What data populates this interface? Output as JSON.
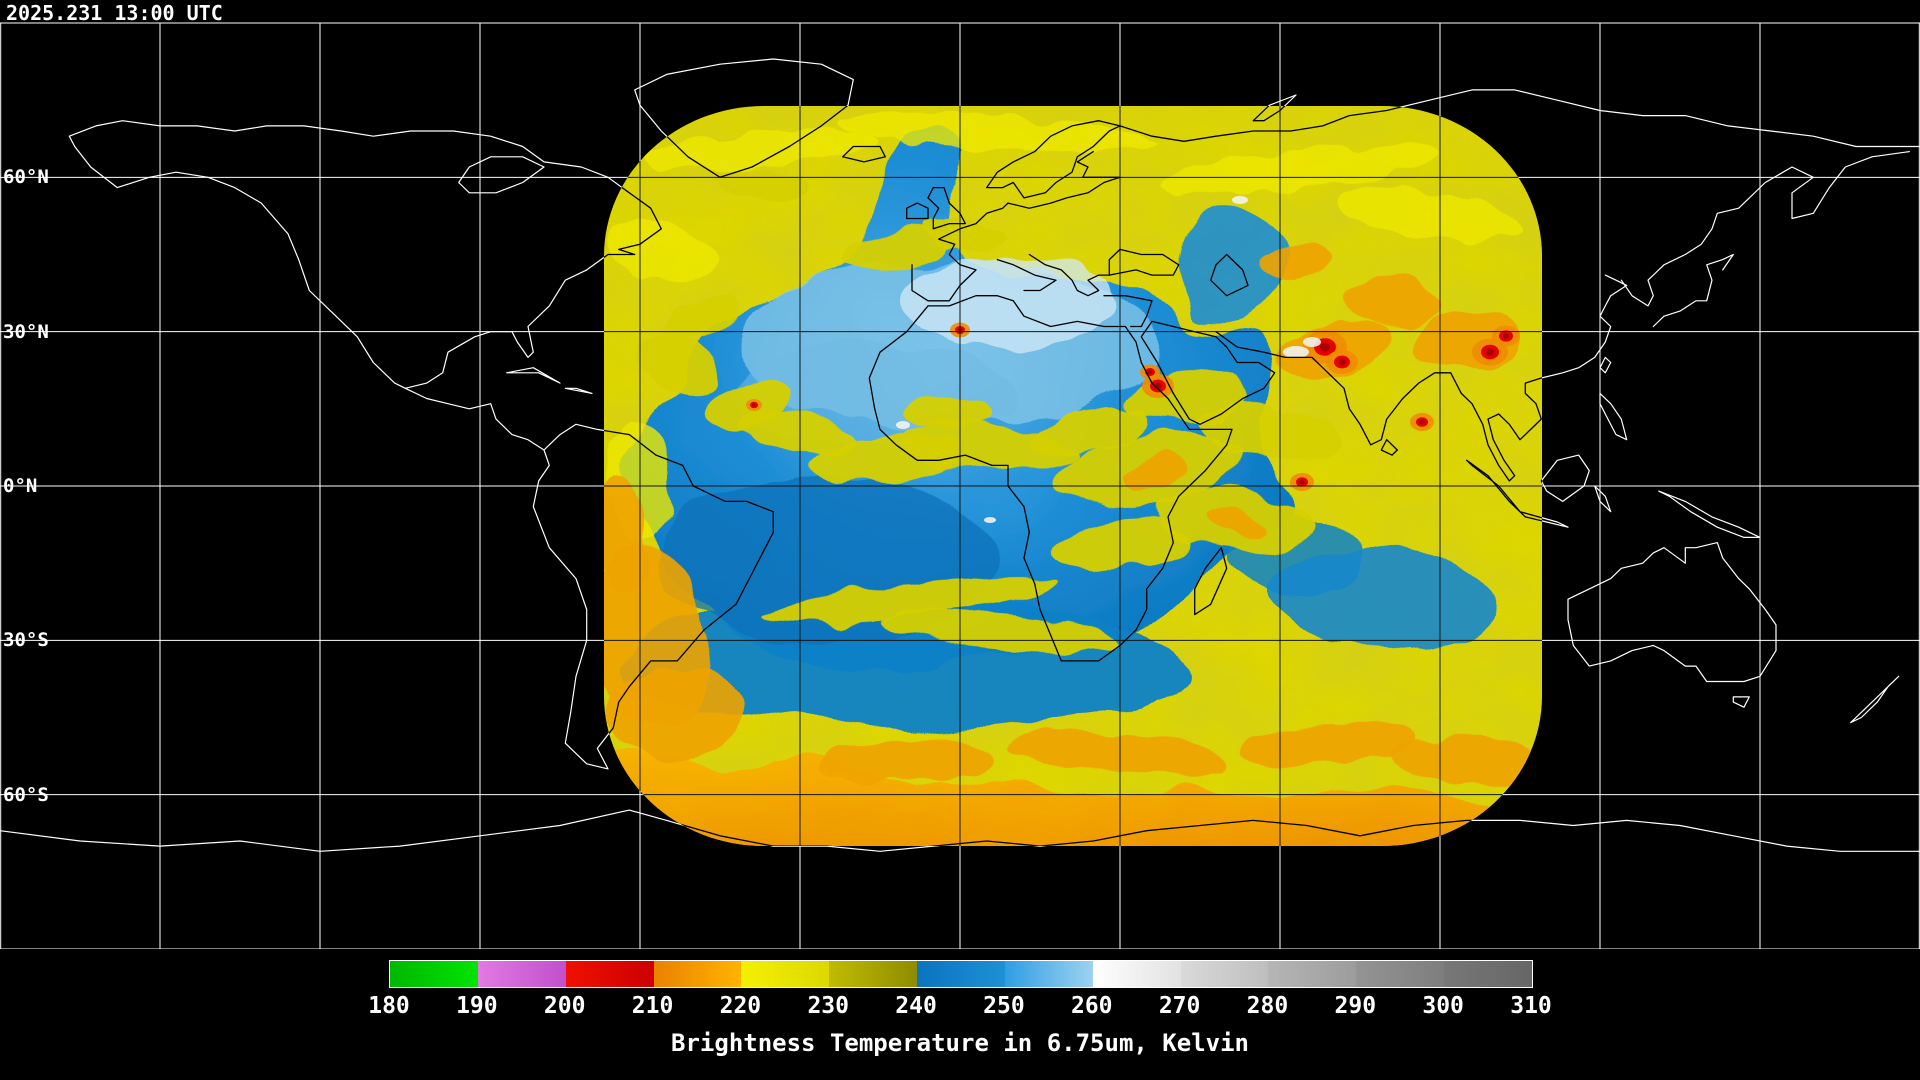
{
  "header": {
    "timestamp": "2025.231 13:00 UTC"
  },
  "map": {
    "background_color": "#000000",
    "grid_line_color": "#ffffff",
    "disk_overlay_line_color": "#000000",
    "coastline_color": "#ffffff",
    "lat_interval_deg": 30,
    "lon_interval_deg": 30,
    "latitude_labels": [
      {
        "label": "60°N",
        "lat": 60
      },
      {
        "label": "30°N",
        "lat": 30
      },
      {
        "label": "0°N",
        "lat": 0
      },
      {
        "label": "30°S",
        "lat": -30
      },
      {
        "label": "60°S",
        "lat": -60
      }
    ],
    "data_palette": {
      "yellow": "#ddd600",
      "olive": "#8e8a00",
      "blue": "#1082c8",
      "light_blue": "#8ccbe9",
      "orange": "#efa400",
      "red": "#e60000",
      "white": "#f2f2f2"
    }
  },
  "legend": {
    "caption": "Brightness Temperature in 6.75um, Kelvin",
    "ticks": [
      "180",
      "190",
      "200",
      "210",
      "220",
      "230",
      "240",
      "250",
      "260",
      "270",
      "280",
      "290",
      "300",
      "310"
    ],
    "segments": [
      {
        "range": "180-190",
        "color": "#00b800",
        "color2": "#00e400"
      },
      {
        "range": "190-200",
        "color": "#e27ae2",
        "color2": "#c050cc"
      },
      {
        "range": "200-210",
        "color": "#f01000",
        "color2": "#cc0000"
      },
      {
        "range": "210-220",
        "color": "#ea8200",
        "color2": "#ffb400"
      },
      {
        "range": "220-230",
        "color": "#f4f000",
        "color2": "#dcd800"
      },
      {
        "range": "230-240",
        "color": "#c0bc00",
        "color2": "#8e8c00"
      },
      {
        "range": "240-250",
        "color": "#0a74be",
        "color2": "#1e90d6"
      },
      {
        "range": "250-260",
        "color": "#2f9ee4",
        "color2": "#9ed2f0"
      },
      {
        "range": "260-270",
        "color": "#ffffff",
        "color2": "#e2e2e2"
      },
      {
        "range": "270-280",
        "color": "#dadada",
        "color2": "#bebebe"
      },
      {
        "range": "280-290",
        "color": "#b6b6b6",
        "color2": "#9c9c9c"
      },
      {
        "range": "290-300",
        "color": "#949494",
        "color2": "#7e7e7e"
      },
      {
        "range": "300-310",
        "color": "#787878",
        "color2": "#666666"
      }
    ]
  }
}
